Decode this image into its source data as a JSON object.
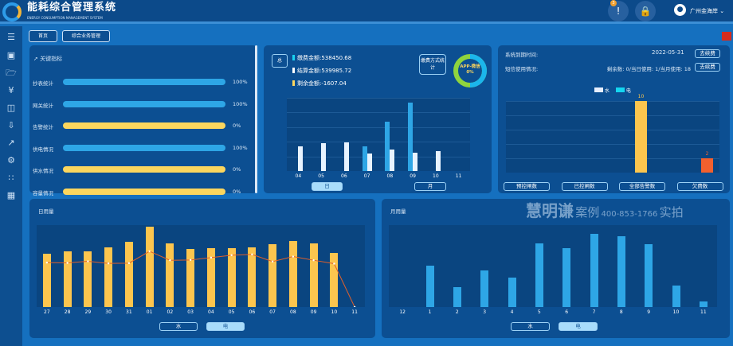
{
  "header": {
    "title": "能耗综合管理系统",
    "subtitle": "ENERGY CONSUMPTION MANAGEMENT SYSTEM",
    "alert_count": "3",
    "user": "广州金海岸"
  },
  "nav": {
    "home": "首页",
    "business": "综合业务管理"
  },
  "kpi": {
    "title": "关键指标",
    "items": [
      {
        "label": "抄表统计",
        "value": "100%",
        "pct": 100,
        "color": "#2ea6e6"
      },
      {
        "label": "网关统计",
        "value": "100%",
        "pct": 100,
        "color": "#2ea6e6"
      },
      {
        "label": "告警统计",
        "value": "0%",
        "pct": 0,
        "color": "#fbd65e"
      },
      {
        "label": "供电情况",
        "value": "100%",
        "pct": 100,
        "color": "#2ea6e6"
      },
      {
        "label": "供水情况",
        "value": "0%",
        "pct": 0,
        "color": "#fbd65e"
      },
      {
        "label": "容量情况",
        "value": "0%",
        "pct": 0,
        "color": "#fbd65e"
      }
    ]
  },
  "payment": {
    "total_tag": "总",
    "lines": [
      {
        "text": "缴费金额:538450.68",
        "color": "#19d3f0"
      },
      {
        "text": "结算金额:539985.72",
        "color": "#ffffff"
      },
      {
        "text": "剩余金额:-1607.04",
        "color": "#fbd65e"
      }
    ],
    "method_tag": "缴费方式统计",
    "donut_label": "APP-微信",
    "donut_value": "0%",
    "tab_day": "日",
    "tab_month": "月"
  },
  "system": {
    "expire_label": "系统到期时间:",
    "expire_date": "2022-05-31",
    "renew": "去续费",
    "sms_label": "短信使用情况:",
    "sms_text": "剩余数: 0/当日使用: 1/当月使用: 18",
    "renew2": "去续费",
    "legend_water": "水",
    "legend_elec": "电",
    "buttons": [
      "预控闸数",
      "已控闸数",
      "全部告警数",
      "欠费数"
    ]
  },
  "daily": {
    "title": "日用量",
    "tab_water": "水",
    "tab_elec": "电"
  },
  "monthly": {
    "title": "月用量",
    "tab_water": "水",
    "tab_elec": "电"
  },
  "watermark": {
    "brand": "慧明谦",
    "tag1": "案例",
    "tag2": "实拍",
    "phone": "400-853-1766"
  },
  "chart_data": [
    {
      "type": "bar",
      "title": "缴费/结算",
      "categories": [
        "04",
        "05",
        "06",
        "07",
        "08",
        "09",
        "10",
        "11"
      ],
      "series": [
        {
          "name": "缴费金额",
          "color": "#2ea6e6",
          "values": [
            0,
            0,
            0,
            93,
            184,
            257,
            0,
            0
          ]
        },
        {
          "name": "结算金额",
          "color": "#e8f3ff",
          "values": [
            94,
            105,
            107,
            66,
            80,
            70,
            74,
            0
          ]
        }
      ],
      "ylim": [
        0,
        275
      ]
    },
    {
      "type": "bar",
      "categories": [
        "预控闸数",
        "已控闸数",
        "全部告警数",
        "欠费数"
      ],
      "values": [
        0,
        0,
        10,
        2
      ],
      "colors": [
        "#fcc54e",
        "#fcc54e",
        "#fcc54e",
        "#f2602e"
      ],
      "labels": [
        "",
        "",
        "10",
        "2"
      ],
      "ylim": [
        0,
        10
      ]
    },
    {
      "type": "bar",
      "title": "日用量",
      "categories": [
        "27",
        "28",
        "29",
        "30",
        "31",
        "01",
        "02",
        "03",
        "04",
        "05",
        "06",
        "07",
        "08",
        "09",
        "10",
        "11"
      ],
      "series": [
        {
          "name": "bar",
          "color": "#fcc54e",
          "values": [
            203,
            212,
            211,
            226,
            246,
            304,
            241,
            221,
            223,
            224,
            227,
            239,
            251,
            241,
            206,
            0
          ]
        },
        {
          "name": "line",
          "color": "#e0602a",
          "values": [
            168,
            167,
            173,
            165,
            166,
            211,
            177,
            178,
            187,
            196,
            199,
            172,
            191,
            177,
            164,
            0
          ]
        }
      ],
      "ylim": [
        0,
        310
      ]
    },
    {
      "type": "bar",
      "title": "月用量",
      "categories": [
        "12",
        "1",
        "2",
        "3",
        "4",
        "5",
        "6",
        "7",
        "8",
        "9",
        "10",
        "11"
      ],
      "values": [
        0,
        158,
        74,
        139,
        110,
        241,
        222,
        278,
        268,
        237,
        81,
        20
      ],
      "ylim": [
        0,
        310
      ]
    }
  ]
}
